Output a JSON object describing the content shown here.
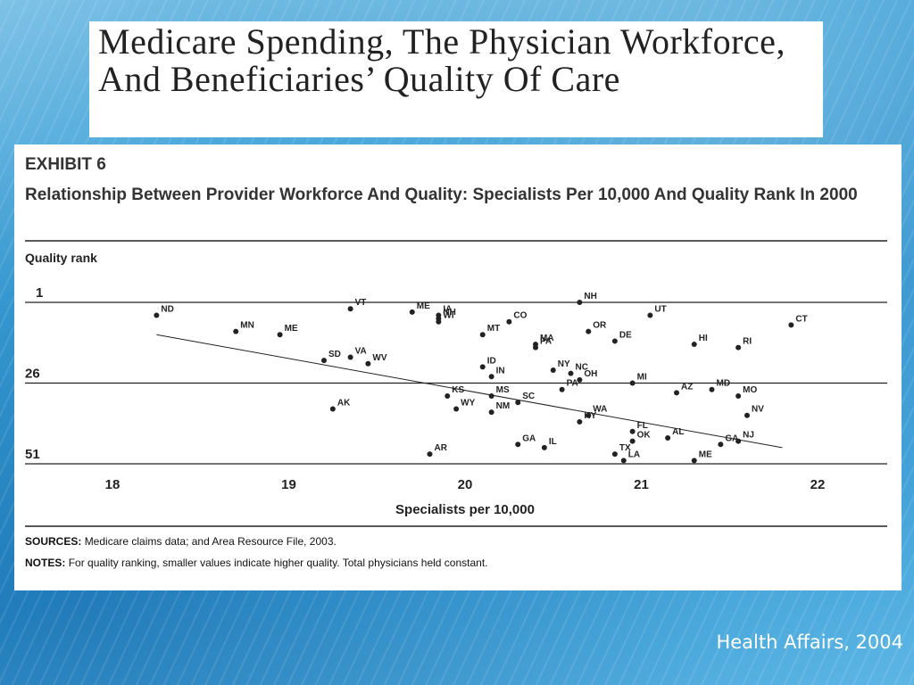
{
  "slide_title": "Medicare Spending, The Physician Workforce, And Beneficiaries’ Quality Of Care",
  "exhibit_label": "EXHIBIT 6",
  "exhibit_title": "Relationship Between Provider Workforce And Quality: Specialists Per 10,000 And Quality Rank In 2000",
  "sources_label": "SOURCES:",
  "sources_text": "Medicare claims data; and Area Resource File, 2003.",
  "notes_label": "NOTES:",
  "notes_text": "For quality ranking, smaller values indicate higher quality. Total physicians held constant.",
  "credit": "Health Affairs, 2004",
  "colors": {
    "ink": "#222222",
    "panel": "#ffffff",
    "background_blue": "#2a8fcd"
  },
  "chart_data": {
    "type": "scatter",
    "xlabel": "Specialists per 10,000",
    "ylabel": "Quality rank",
    "xlim": [
      17.5,
      22.4
    ],
    "ylim": [
      1,
      51
    ],
    "x_ticks": [
      18,
      19,
      20,
      21,
      22
    ],
    "y_ticks": [
      1,
      26,
      51
    ],
    "grid": "horizontal lines at y ticks",
    "points": [
      {
        "label": "ND",
        "x": 18.25,
        "y": 5
      },
      {
        "label": "MN",
        "x": 18.7,
        "y": 10
      },
      {
        "label": "ME",
        "x": 18.95,
        "y": 11
      },
      {
        "label": "SD",
        "x": 19.2,
        "y": 19
      },
      {
        "label": "VT",
        "x": 19.35,
        "y": 3
      },
      {
        "label": "VA",
        "x": 19.35,
        "y": 18
      },
      {
        "label": "WV",
        "x": 19.45,
        "y": 20
      },
      {
        "label": "AK",
        "x": 19.25,
        "y": 34
      },
      {
        "label": "ME",
        "x": 19.7,
        "y": 4
      },
      {
        "label": "IA",
        "x": 19.85,
        "y": 5
      },
      {
        "label": "NH",
        "x": 19.85,
        "y": 6
      },
      {
        "label": "WI",
        "x": 19.85,
        "y": 7
      },
      {
        "label": "KS",
        "x": 19.9,
        "y": 30
      },
      {
        "label": "WY",
        "x": 19.95,
        "y": 34
      },
      {
        "label": "AR",
        "x": 19.8,
        "y": 48
      },
      {
        "label": "MT",
        "x": 20.1,
        "y": 11
      },
      {
        "label": "CO",
        "x": 20.25,
        "y": 7
      },
      {
        "label": "ID",
        "x": 20.1,
        "y": 21
      },
      {
        "label": "IN",
        "x": 20.15,
        "y": 24
      },
      {
        "label": "MS",
        "x": 20.15,
        "y": 30
      },
      {
        "label": "NM",
        "x": 20.15,
        "y": 35
      },
      {
        "label": "SC",
        "x": 20.3,
        "y": 32
      },
      {
        "label": "GA",
        "x": 20.3,
        "y": 45
      },
      {
        "label": "IL",
        "x": 20.45,
        "y": 46
      },
      {
        "label": "MA",
        "x": 20.4,
        "y": 14
      },
      {
        "label": "PA",
        "x": 20.4,
        "y": 15
      },
      {
        "label": "NY",
        "x": 20.5,
        "y": 22
      },
      {
        "label": "PA",
        "x": 20.55,
        "y": 28
      },
      {
        "label": "NC",
        "x": 20.6,
        "y": 23
      },
      {
        "label": "OH",
        "x": 20.65,
        "y": 25
      },
      {
        "label": "NH",
        "x": 20.65,
        "y": 1
      },
      {
        "label": "OR",
        "x": 20.7,
        "y": 10
      },
      {
        "label": "WA",
        "x": 20.7,
        "y": 36
      },
      {
        "label": "KY",
        "x": 20.65,
        "y": 38
      },
      {
        "label": "DE",
        "x": 20.85,
        "y": 13
      },
      {
        "label": "UT",
        "x": 21.05,
        "y": 5
      },
      {
        "label": "MI",
        "x": 20.95,
        "y": 26
      },
      {
        "label": "FL",
        "x": 20.95,
        "y": 41
      },
      {
        "label": "OK",
        "x": 20.95,
        "y": 44
      },
      {
        "label": "TX",
        "x": 20.85,
        "y": 48
      },
      {
        "label": "LA",
        "x": 20.9,
        "y": 50
      },
      {
        "label": "AL",
        "x": 21.15,
        "y": 43
      },
      {
        "label": "AZ",
        "x": 21.2,
        "y": 29
      },
      {
        "label": "HI",
        "x": 21.3,
        "y": 14
      },
      {
        "label": "MD",
        "x": 21.4,
        "y": 28
      },
      {
        "label": "RI",
        "x": 21.55,
        "y": 15
      },
      {
        "label": "MO",
        "x": 21.55,
        "y": 30
      },
      {
        "label": "NV",
        "x": 21.6,
        "y": 36
      },
      {
        "label": "GA",
        "x": 21.45,
        "y": 45
      },
      {
        "label": "NJ",
        "x": 21.55,
        "y": 44
      },
      {
        "label": "ME",
        "x": 21.3,
        "y": 50
      },
      {
        "label": "CT",
        "x": 21.85,
        "y": 8
      }
    ],
    "trend_line": {
      "x": [
        18.25,
        21.8
      ],
      "y": [
        11,
        46
      ]
    }
  }
}
